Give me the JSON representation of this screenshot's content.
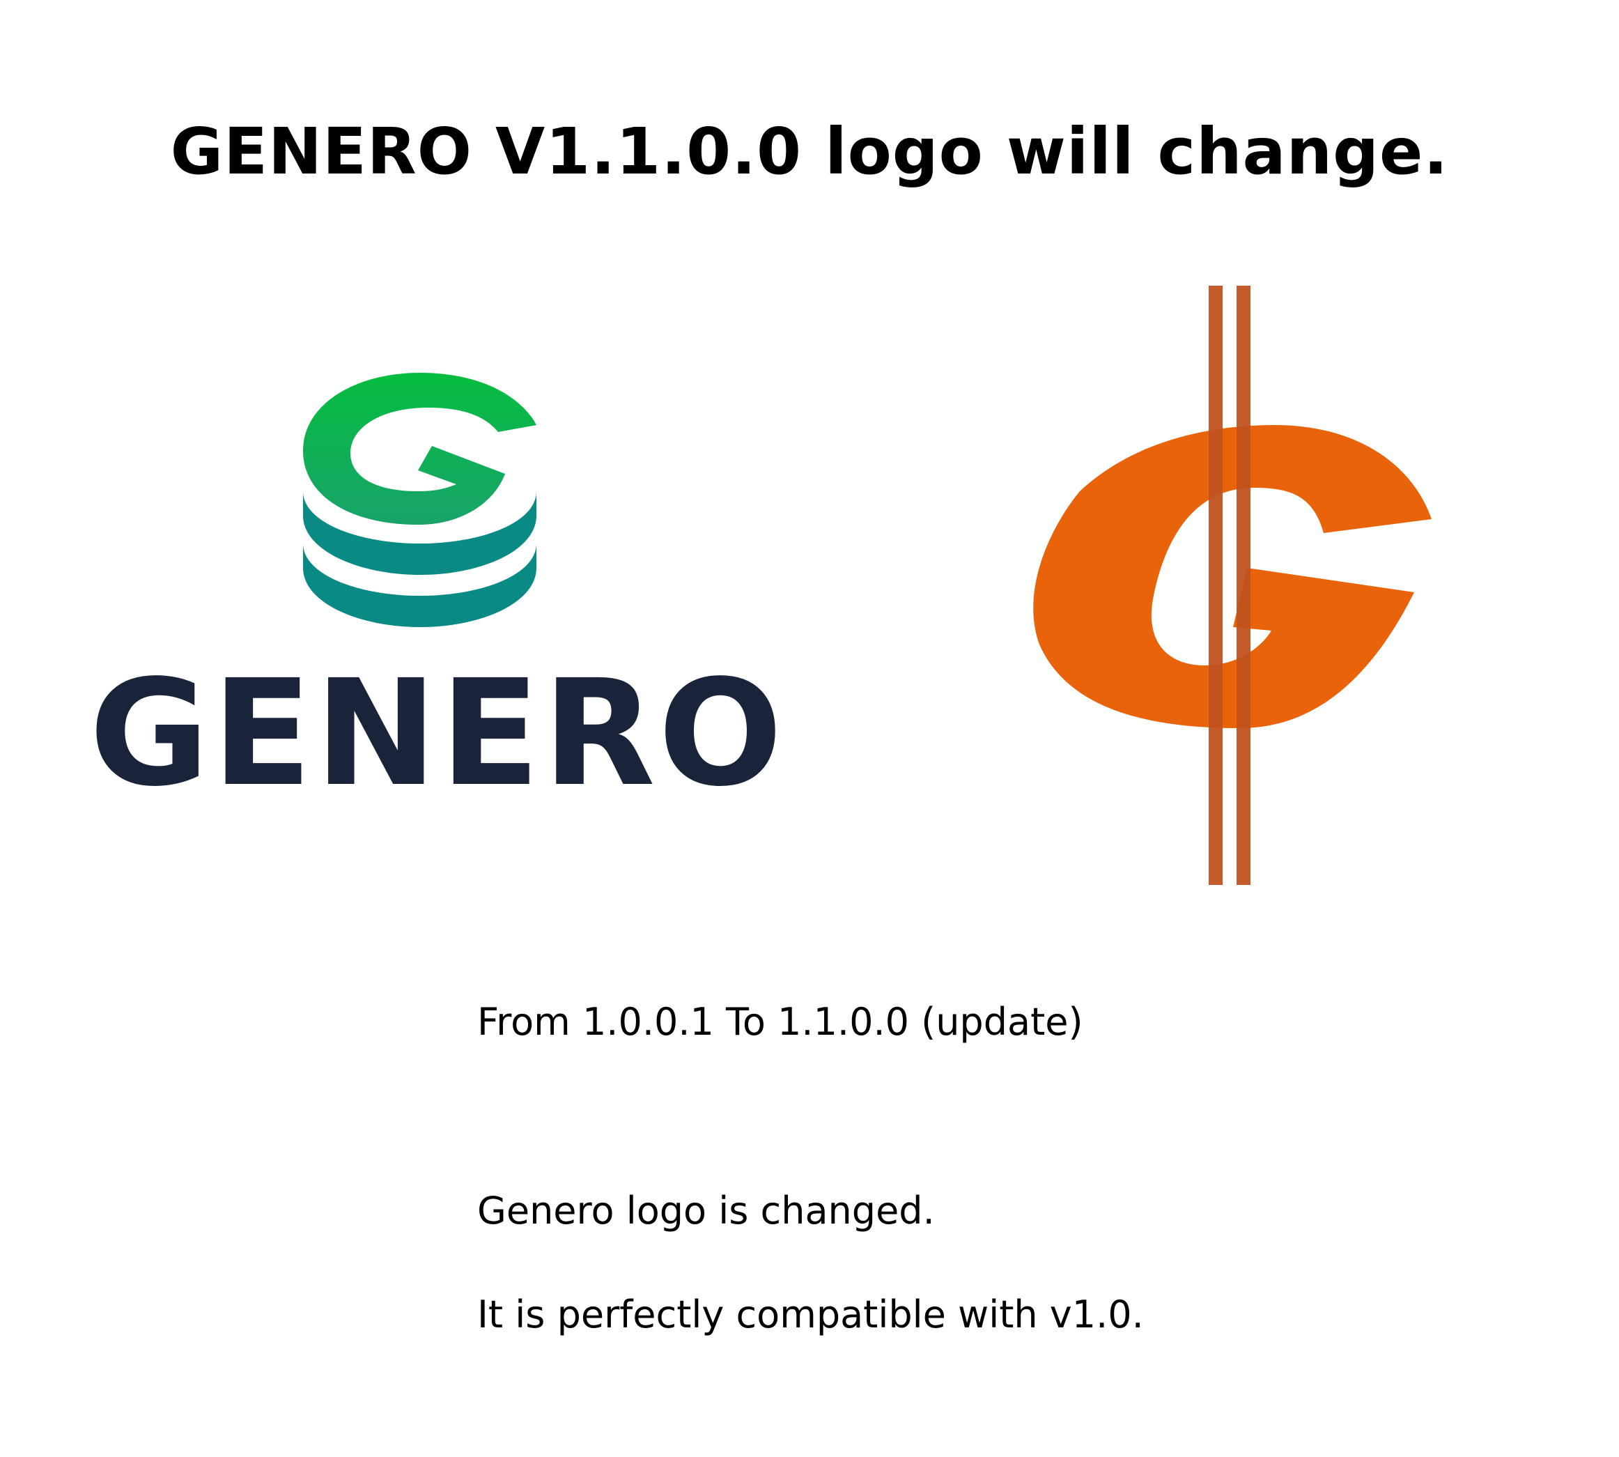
{
  "headline": "GENERO V1.1.0.0 logo will change.",
  "new_logo": {
    "icon": "stacked-g-icon",
    "wordmark": "GENERO",
    "colors": {
      "green_top": "#06bd3f",
      "green_mid": "#18a36a",
      "teal": "#0a8a85",
      "wordmark": "#19243b"
    }
  },
  "old_logo": {
    "icon": "orange-g-dollar-icon",
    "colors": {
      "letter": "#e8630a",
      "bars": "#c0521f"
    }
  },
  "update_line": "From 1.0.0.1 To 1.1.0.0 (update)",
  "notes": [
    "Genero logo is changed.",
    "It is perfectly compatible with v1.0."
  ]
}
